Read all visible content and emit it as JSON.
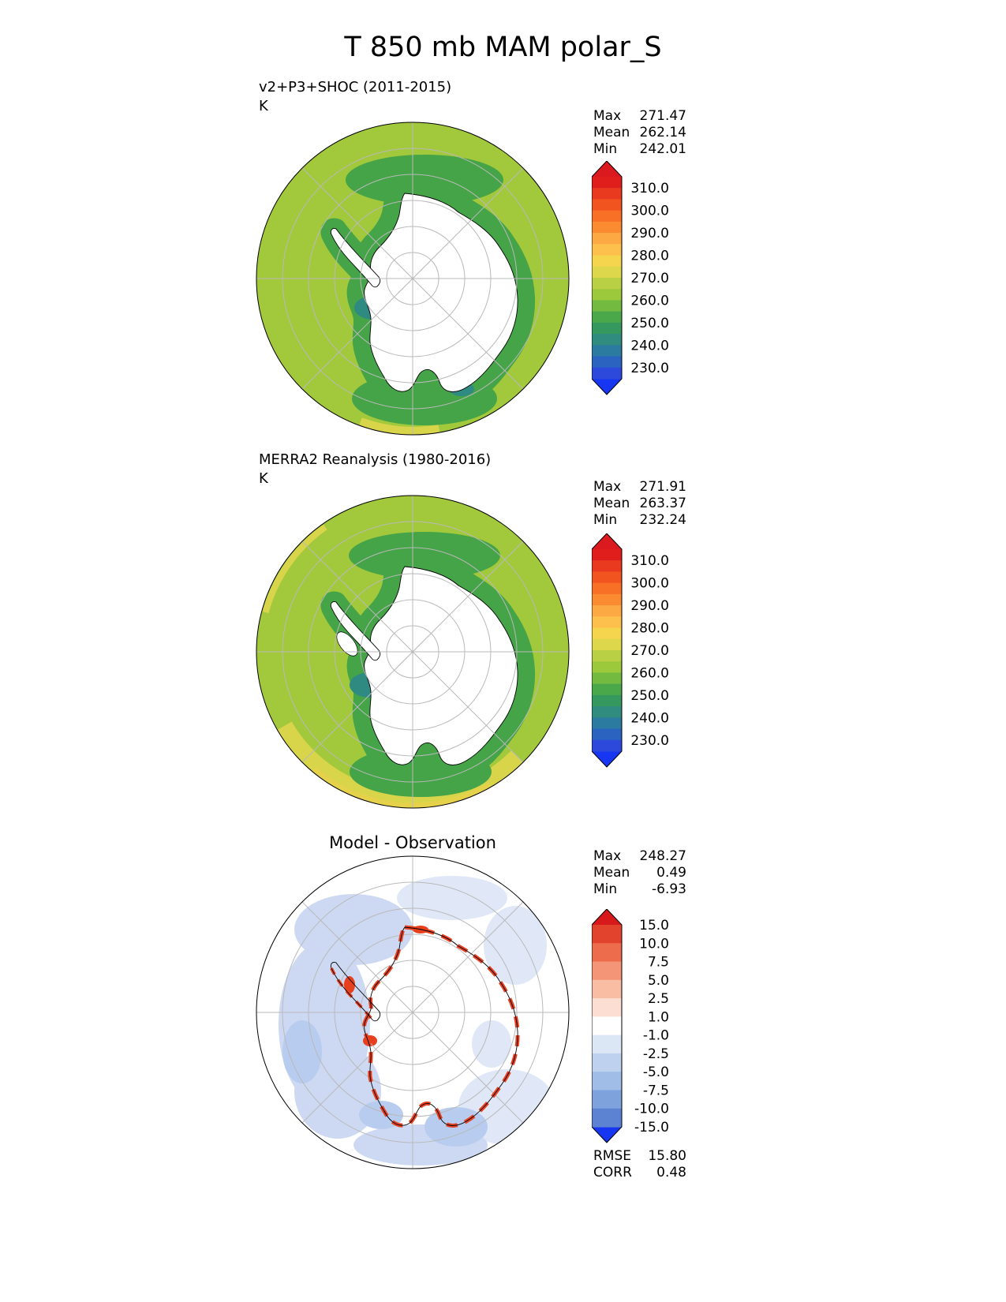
{
  "title": "T 850 mb MAM polar_S",
  "map_colors": {
    "ocean": "#a2c83c",
    "ring": "#45a348",
    "teal": "#2f8b82",
    "warm_rim": "#d9d54b",
    "warm_rim2": "#e5d24a",
    "land": "#ffffff",
    "grid": "#b9b9b9",
    "diff_light": "#cdd9f2",
    "diff_lighter": "#e0e8f8",
    "diff_mid": "#b7ccee",
    "diff_red": "#e6401f"
  },
  "panels": [
    {
      "label": "v2+P3+SHOC (2011-2015)",
      "units": "K",
      "stats": [
        {
          "label": "Max",
          "value": "271.47"
        },
        {
          "label": "Mean",
          "value": "262.14"
        },
        {
          "label": "Min",
          "value": "242.01"
        }
      ],
      "colorbar": {
        "labels": [
          "310.0",
          "300.0",
          "290.0",
          "280.0",
          "270.0",
          "260.0",
          "250.0",
          "240.0",
          "230.0"
        ],
        "colors": [
          "#e01f1d",
          "#e93a1f",
          "#f1541f",
          "#f77026",
          "#fa8b31",
          "#fca943",
          "#fdc04c",
          "#f5d44e",
          "#dcd74b",
          "#bad044",
          "#9cc83c",
          "#73ba40",
          "#4aa84a",
          "#35995f",
          "#2f8c7f",
          "#2b7a9f",
          "#2a64c0",
          "#2c49dc"
        ],
        "arrow_top": "#da1a1f",
        "arrow_bottom": "#1636f2"
      }
    },
    {
      "label": "MERRA2 Reanalysis (1980-2016)",
      "units": "K",
      "stats": [
        {
          "label": "Max",
          "value": "271.91"
        },
        {
          "label": "Mean",
          "value": "263.37"
        },
        {
          "label": "Min",
          "value": "232.24"
        }
      ],
      "colorbar": {
        "labels": [
          "310.0",
          "300.0",
          "290.0",
          "280.0",
          "270.0",
          "260.0",
          "250.0",
          "240.0",
          "230.0"
        ],
        "colors": [
          "#e01f1d",
          "#e93a1f",
          "#f1541f",
          "#f77026",
          "#fa8b31",
          "#fca943",
          "#fdc04c",
          "#f5d44e",
          "#dcd74b",
          "#bad044",
          "#9cc83c",
          "#73ba40",
          "#4aa84a",
          "#35995f",
          "#2f8c7f",
          "#2b7a9f",
          "#2a64c0",
          "#2c49dc"
        ],
        "arrow_top": "#da1a1f",
        "arrow_bottom": "#1636f2"
      }
    },
    {
      "label": "Model - Observation",
      "stats": [
        {
          "label": "Max",
          "value": "248.27"
        },
        {
          "label": "Mean",
          "value": "0.49"
        },
        {
          "label": "Min",
          "value": "-6.93"
        }
      ],
      "colorbar": {
        "labels": [
          "15.0",
          "10.0",
          "7.5",
          "5.0",
          "2.5",
          "1.0",
          "-1.0",
          "-2.5",
          "-5.0",
          "-7.5",
          "-10.0",
          "-15.0"
        ],
        "colors": [
          "#e2432d",
          "#ec6c4b",
          "#f49577",
          "#f9bda3",
          "#fcdfd2",
          "#ffffff",
          "#dce7f6",
          "#bed2ef",
          "#9fbde7",
          "#7ea3dc",
          "#5b83d2"
        ],
        "arrow_top": "#d7191c",
        "arrow_bottom": "#1636f2"
      },
      "metrics": [
        {
          "label": "RMSE",
          "value": "15.80"
        },
        {
          "label": "CORR",
          "value": "0.48"
        }
      ]
    }
  ],
  "chart_data": [
    {
      "type": "heatmap",
      "subtype": "south-polar stereographic map",
      "title": "v2+P3+SHOC (2011-2015)",
      "variable": "T 850 mb",
      "season": "MAM",
      "region": "polar_S",
      "units": "K",
      "stats": {
        "max": 271.47,
        "mean": 262.14,
        "min": 242.01
      },
      "colorbar_levels": [
        230.0,
        240.0,
        250.0,
        260.0,
        270.0,
        280.0,
        290.0,
        300.0,
        310.0
      ],
      "colorbar_extend": "both",
      "legend_position": "right"
    },
    {
      "type": "heatmap",
      "subtype": "south-polar stereographic map",
      "title": "MERRA2 Reanalysis (1980-2016)",
      "variable": "T 850 mb",
      "season": "MAM",
      "region": "polar_S",
      "units": "K",
      "stats": {
        "max": 271.91,
        "mean": 263.37,
        "min": 232.24
      },
      "colorbar_levels": [
        230.0,
        240.0,
        250.0,
        260.0,
        270.0,
        280.0,
        290.0,
        300.0,
        310.0
      ],
      "colorbar_extend": "both",
      "legend_position": "right"
    },
    {
      "type": "heatmap",
      "subtype": "south-polar stereographic map (difference)",
      "title": "Model - Observation",
      "variable": "T 850 mb",
      "season": "MAM",
      "region": "polar_S",
      "stats": {
        "max": 248.27,
        "mean": 0.49,
        "min": -6.93
      },
      "colorbar_levels": [
        -15.0,
        -10.0,
        -7.5,
        -5.0,
        -2.5,
        -1.0,
        1.0,
        2.5,
        5.0,
        7.5,
        10.0,
        15.0
      ],
      "colorbar_extend": "both",
      "metrics": {
        "rmse": 15.8,
        "corr": 0.48
      },
      "legend_position": "right"
    }
  ]
}
